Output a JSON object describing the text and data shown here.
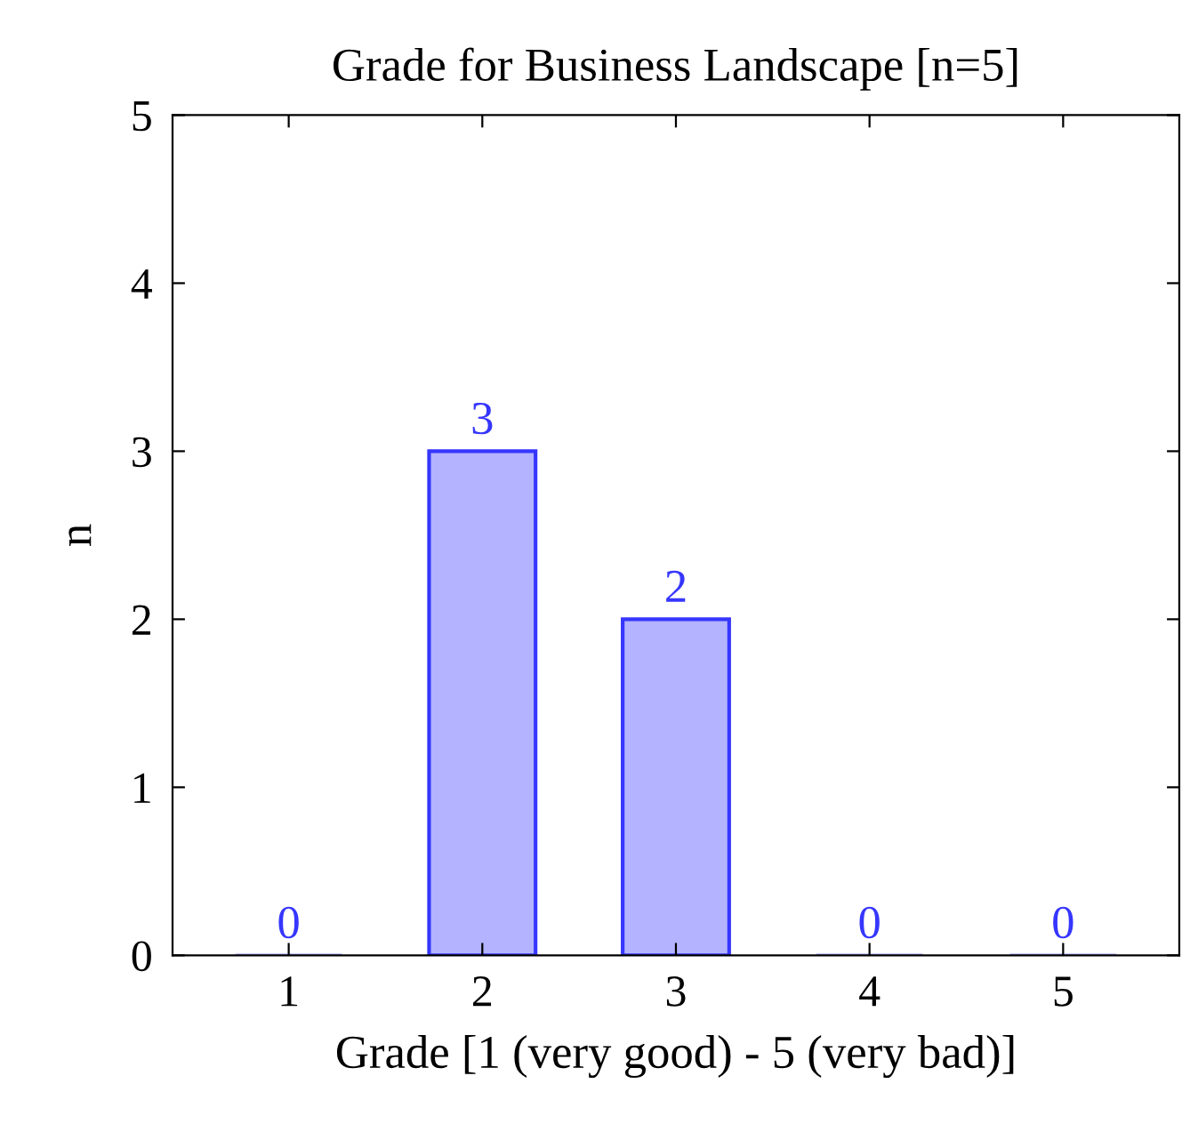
{
  "chart_data": {
    "type": "bar",
    "title": "Grade for Business Landscape [n=5]",
    "xlabel": "Grade [1 (very good) - 5 (very bad)]",
    "ylabel": "n",
    "categories": [
      "1",
      "2",
      "3",
      "4",
      "5"
    ],
    "values": [
      0,
      3,
      2,
      0,
      0
    ],
    "color": "#b3b3ff",
    "ylim": [
      0,
      5
    ],
    "yticks": [
      0,
      1,
      2,
      3,
      4,
      5
    ],
    "grid": false,
    "data_labels": true
  }
}
